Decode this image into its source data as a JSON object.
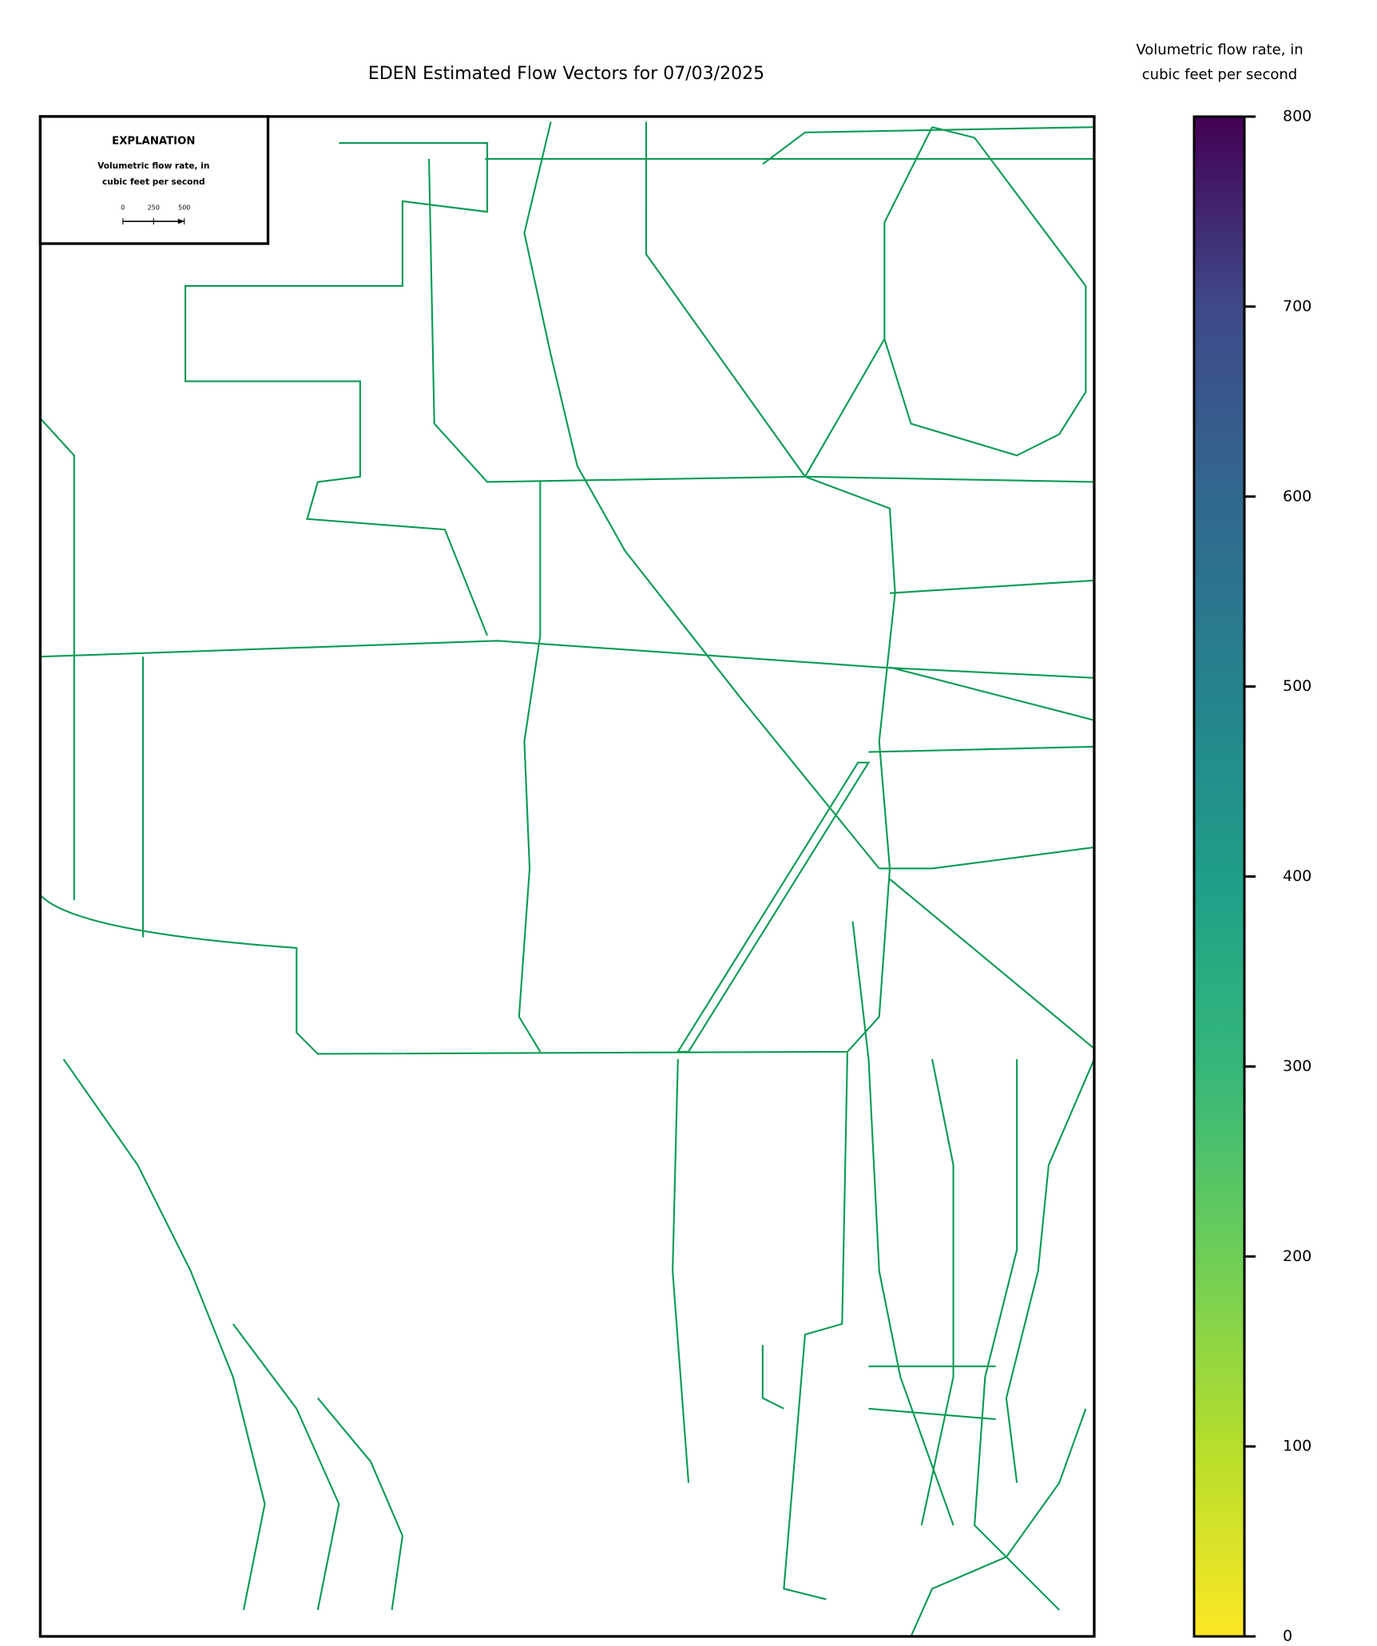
{
  "title": "EDEN Estimated Flow Vectors for 07/03/2025",
  "colorbar": {
    "label": [
      "Volumetric flow rate, in",
      "cubic feet per second"
    ],
    "lim": [
      0,
      800
    ],
    "ticks": [
      0,
      100,
      200,
      300,
      400,
      500,
      600,
      700,
      800
    ],
    "colormap": "viridis reversed"
  },
  "explanation": {
    "title": "EXPLANATION",
    "label": [
      "Volumetric flow rate, in",
      "cubic feet per second"
    ],
    "scale_ticks": [
      0,
      250,
      500
    ]
  }
}
